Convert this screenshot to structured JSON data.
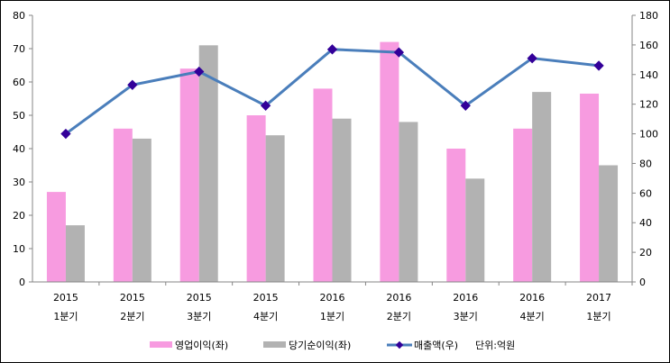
{
  "chart_data": {
    "type": "bar+line",
    "categories": [
      [
        "2015",
        "1분기"
      ],
      [
        "2015",
        "2분기"
      ],
      [
        "2015",
        "3분기"
      ],
      [
        "2015",
        "4분기"
      ],
      [
        "2016",
        "1분기"
      ],
      [
        "2016",
        "2분기"
      ],
      [
        "2016",
        "3분기"
      ],
      [
        "2016",
        "4분기"
      ],
      [
        "2017",
        "1분기"
      ]
    ],
    "series": [
      {
        "name": "영업이익(좌)",
        "type": "bar",
        "axis": "left",
        "color": "#f79be0",
        "values": [
          27,
          46,
          64,
          50,
          58,
          72,
          40,
          46,
          56.5
        ]
      },
      {
        "name": "당기순이익(좌)",
        "type": "bar",
        "axis": "left",
        "color": "#b2b2b2",
        "values": [
          17,
          43,
          71,
          44,
          49,
          48,
          31,
          57,
          35
        ]
      },
      {
        "name": "매출액(우)",
        "type": "line",
        "axis": "right",
        "color": "#4a7ebb",
        "marker_color": "#330099",
        "values": [
          100,
          133,
          142,
          119,
          157,
          155,
          119,
          151,
          146
        ]
      }
    ],
    "left_axis": {
      "min": 0,
      "max": 80,
      "ticks": [
        0,
        10,
        20,
        30,
        40,
        50,
        60,
        70,
        80
      ]
    },
    "right_axis": {
      "min": 0,
      "max": 180,
      "ticks": [
        0,
        20,
        40,
        60,
        80,
        100,
        120,
        140,
        160,
        180
      ]
    },
    "unit_note": "단위:억원",
    "legend": "bottom",
    "grid": false
  }
}
